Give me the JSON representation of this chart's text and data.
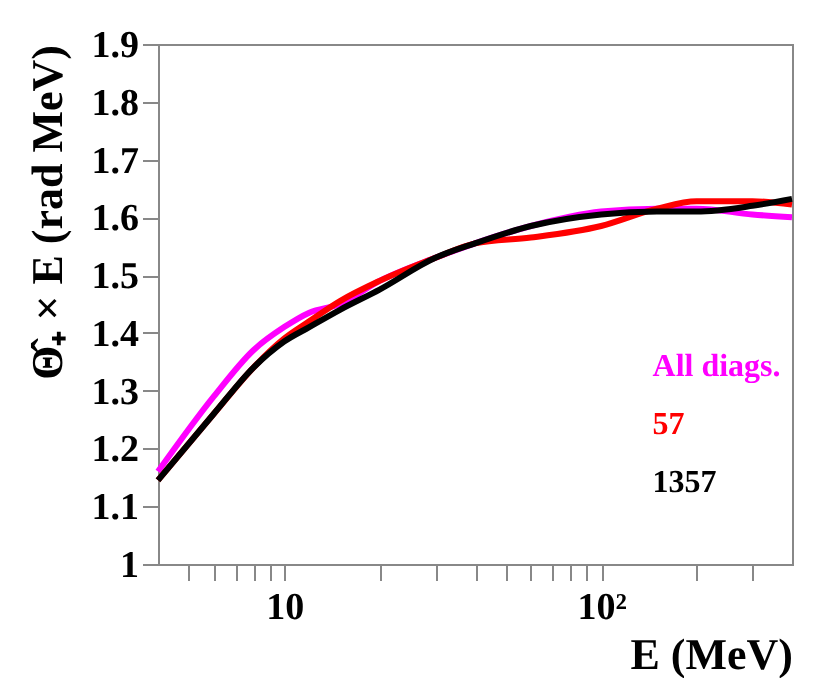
{
  "chart_data": {
    "type": "line",
    "xlabel": "E (MeV)",
    "ylabel": "Θ̂₊ × E (rad MeV)",
    "x": [
      4,
      6,
      8,
      10,
      12,
      15,
      20,
      30,
      40,
      60,
      100,
      150,
      200,
      300,
      400
    ],
    "series": [
      {
        "name": "All diags.",
        "color": "#ff00ff",
        "values": [
          1.16,
          1.29,
          1.37,
          1.41,
          1.435,
          1.45,
          1.49,
          1.53,
          1.555,
          1.585,
          1.61,
          1.615,
          1.615,
          1.605,
          1.6
        ]
      },
      {
        "name": "57",
        "color": "#ff0000",
        "values": [
          1.145,
          1.26,
          1.34,
          1.39,
          1.42,
          1.455,
          1.49,
          1.53,
          1.555,
          1.565,
          1.585,
          1.615,
          1.628,
          1.628,
          1.622
        ]
      },
      {
        "name": "1357",
        "color": "#000000",
        "values": [
          1.145,
          1.26,
          1.34,
          1.385,
          1.41,
          1.44,
          1.475,
          1.53,
          1.555,
          1.585,
          1.605,
          1.61,
          1.61,
          1.62,
          1.632
        ]
      }
    ],
    "log": "x",
    "xlim": [
      4,
      400
    ],
    "ylim": [
      1,
      1.9
    ],
    "xticks": [
      {
        "value": 5,
        "label": null
      },
      {
        "value": 6,
        "label": null
      },
      {
        "value": 7,
        "label": null
      },
      {
        "value": 8,
        "label": null
      },
      {
        "value": 9,
        "label": null
      },
      10,
      {
        "value": 20,
        "label": null
      },
      {
        "value": 30,
        "label": null
      },
      {
        "value": 40,
        "label": null
      },
      {
        "value": 50,
        "label": null
      },
      {
        "value": 60,
        "label": null
      },
      {
        "value": 70,
        "label": null
      },
      {
        "value": 80,
        "label": null
      },
      {
        "value": 90,
        "label": null
      },
      {
        "value": 100,
        "label": "10²"
      },
      {
        "value": 200,
        "label": null
      },
      {
        "value": 300,
        "label": null
      }
    ],
    "yticks": [
      1,
      1.1,
      1.2,
      1.3,
      1.4,
      1.5,
      1.6,
      1.7,
      1.8,
      1.9
    ],
    "grid": false,
    "legend": "right",
    "line_style": "solid",
    "marker": "none"
  }
}
